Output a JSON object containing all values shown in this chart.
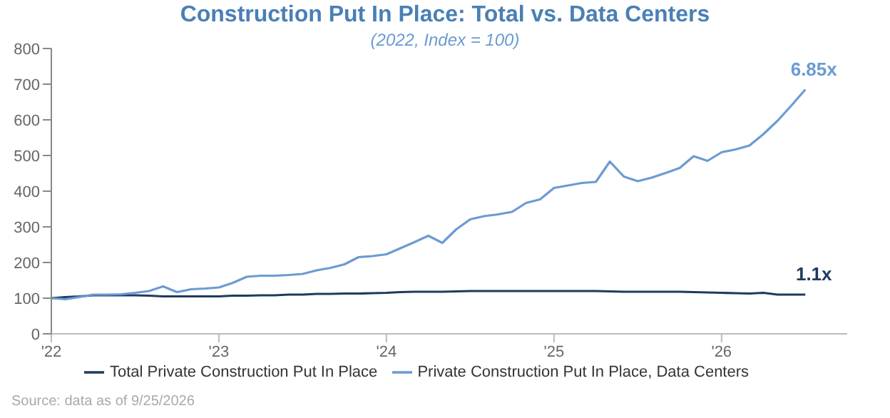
{
  "chart_data": {
    "type": "line",
    "title": "Construction Put In Place: Total vs. Data Centers",
    "subtitle": "(2022, Index = 100)",
    "x": [
      "2022-01",
      "2022-02",
      "2022-03",
      "2022-04",
      "2022-05",
      "2022-06",
      "2022-07",
      "2022-08",
      "2022-09",
      "2022-10",
      "2022-11",
      "2022-12",
      "2023-01",
      "2023-02",
      "2023-03",
      "2023-04",
      "2023-05",
      "2023-06",
      "2023-07",
      "2023-08",
      "2023-09",
      "2023-10",
      "2023-11",
      "2023-12",
      "2024-01",
      "2024-02",
      "2024-03",
      "2024-04",
      "2024-05",
      "2024-06",
      "2024-07",
      "2024-08",
      "2024-09",
      "2024-10",
      "2024-11",
      "2024-12",
      "2025-01",
      "2025-02",
      "2025-03",
      "2025-04",
      "2025-05",
      "2025-06",
      "2025-07",
      "2025-08",
      "2025-09",
      "2025-10",
      "2025-11",
      "2025-12",
      "2026-01",
      "2026-02",
      "2026-03",
      "2026-04",
      "2026-05",
      "2026-06",
      "2026-07"
    ],
    "series": [
      {
        "name": "Total Private Construction Put In Place",
        "color": "#1f3a5f",
        "values": [
          100,
          103,
          105,
          108,
          108,
          108,
          108,
          107,
          105,
          105,
          105,
          105,
          105,
          107,
          107,
          108,
          108,
          110,
          110,
          112,
          112,
          113,
          113,
          114,
          115,
          117,
          118,
          118,
          118,
          119,
          120,
          120,
          120,
          120,
          120,
          120,
          120,
          120,
          120,
          120,
          119,
          118,
          118,
          118,
          118,
          118,
          117,
          116,
          115,
          114,
          113,
          115,
          110,
          110,
          110
        ]
      },
      {
        "name": "Private Construction Put In Place, Data Centers",
        "color": "#6b9bd1",
        "values": [
          100,
          97,
          103,
          110,
          110,
          111,
          115,
          120,
          133,
          117,
          125,
          127,
          130,
          143,
          160,
          163,
          163,
          165,
          168,
          178,
          185,
          195,
          215,
          218,
          223,
          240,
          257,
          275,
          255,
          293,
          321,
          330,
          335,
          342,
          367,
          377,
          409,
          416,
          423,
          426,
          483,
          441,
          428,
          438,
          451,
          465,
          498,
          485,
          509,
          517,
          528,
          560,
          597,
          640,
          685
        ]
      }
    ],
    "xlim": [
      "2022-01",
      "2026-10"
    ],
    "xticks": [
      {
        "value": "2022-01",
        "label": "'22"
      },
      {
        "value": "2023-01",
        "label": "'23"
      },
      {
        "value": "2024-01",
        "label": "'24"
      },
      {
        "value": "2025-01",
        "label": "'25"
      },
      {
        "value": "2026-01",
        "label": "'26"
      }
    ],
    "ylim": [
      0,
      800
    ],
    "yticks": [
      0,
      100,
      200,
      300,
      400,
      500,
      600,
      700,
      800
    ],
    "grid": false,
    "legend": "bottom",
    "marker": "none",
    "annotations": [
      {
        "text": "6.85x",
        "x": "2026-07",
        "y": 685
      },
      {
        "text": "1.1x",
        "x": "2026-07",
        "y": 110
      },
      "Source: data as of 9/25/2026"
    ]
  }
}
